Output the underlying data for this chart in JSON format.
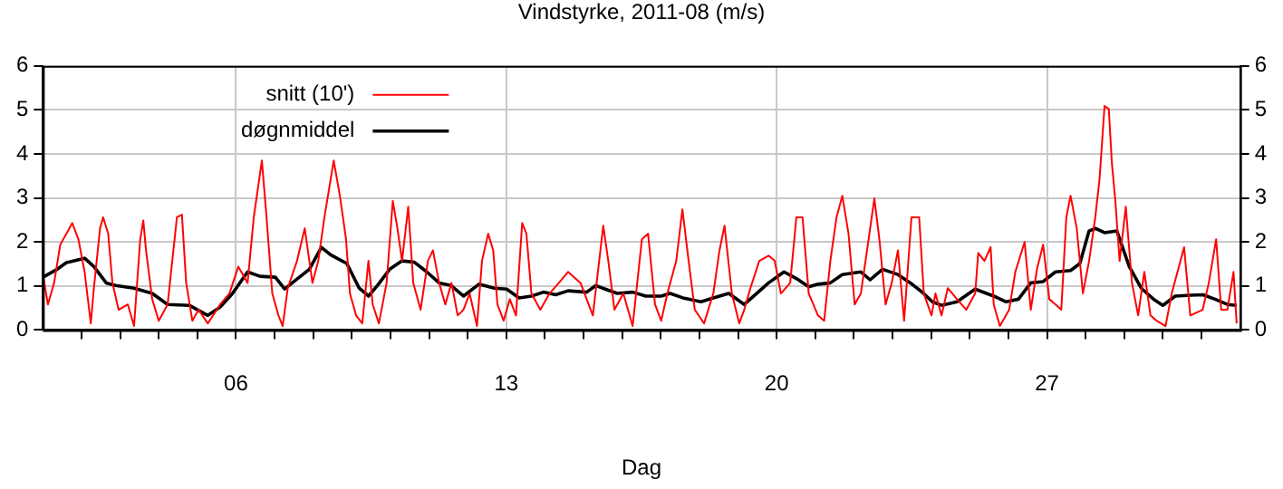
{
  "chart_data": {
    "type": "line",
    "title": "Vindstyrke, 2011-08 (m/s)",
    "xlabel": "Dag",
    "xlim": [
      1,
      32
    ],
    "xticks": [
      {
        "value": 2,
        "label": null
      },
      {
        "value": 3,
        "label": null
      },
      {
        "value": 4,
        "label": null
      },
      {
        "value": 5,
        "label": null
      },
      {
        "value": 6,
        "label": "06"
      },
      {
        "value": 7,
        "label": null
      },
      {
        "value": 8,
        "label": null
      },
      {
        "value": 9,
        "label": null
      },
      {
        "value": 10,
        "label": null
      },
      {
        "value": 11,
        "label": null
      },
      {
        "value": 12,
        "label": null
      },
      {
        "value": 13,
        "label": "13"
      },
      {
        "value": 14,
        "label": null
      },
      {
        "value": 15,
        "label": null
      },
      {
        "value": 16,
        "label": null
      },
      {
        "value": 17,
        "label": null
      },
      {
        "value": 18,
        "label": null
      },
      {
        "value": 19,
        "label": null
      },
      {
        "value": 20,
        "label": "20"
      },
      {
        "value": 21,
        "label": null
      },
      {
        "value": 22,
        "label": null
      },
      {
        "value": 23,
        "label": null
      },
      {
        "value": 24,
        "label": null
      },
      {
        "value": 25,
        "label": null
      },
      {
        "value": 26,
        "label": null
      },
      {
        "value": 27,
        "label": "27"
      },
      {
        "value": 28,
        "label": null
      },
      {
        "value": 29,
        "label": null
      },
      {
        "value": 30,
        "label": null
      },
      {
        "value": 31,
        "label": null
      }
    ],
    "ylim": [
      0,
      6
    ],
    "yticks": [
      0,
      1,
      2,
      3,
      4,
      5,
      6
    ],
    "y2lim": [
      0,
      6
    ],
    "y2ticks": [
      0,
      1,
      2,
      3,
      4,
      5,
      6
    ],
    "grid": true,
    "legend": "top left",
    "marker": "none",
    "line_style": "solid",
    "series": [
      {
        "name": "snitt (10')",
        "color": "#ff0000",
        "x": [
          1.0,
          1.13,
          1.29,
          1.45,
          1.61,
          1.76,
          1.92,
          2.08,
          2.24,
          2.32,
          2.48,
          2.56,
          2.69,
          2.8,
          2.96,
          3.2,
          3.36,
          3.52,
          3.6,
          3.67,
          3.83,
          4.0,
          4.23,
          4.47,
          4.6,
          4.71,
          4.87,
          5.03,
          5.27,
          5.59,
          5.83,
          6.06,
          6.3,
          6.46,
          6.67,
          6.78,
          6.94,
          7.1,
          7.21,
          7.34,
          7.58,
          7.78,
          7.98,
          8.13,
          8.29,
          8.53,
          8.69,
          8.85,
          8.95,
          9.11,
          9.27,
          9.43,
          9.54,
          9.7,
          9.9,
          10.06,
          10.18,
          10.3,
          10.46,
          10.59,
          10.78,
          10.97,
          11.1,
          11.26,
          11.42,
          11.58,
          11.74,
          11.89,
          12.05,
          12.24,
          12.37,
          12.53,
          12.66,
          12.77,
          12.93,
          13.09,
          13.25,
          13.41,
          13.52,
          13.65,
          13.88,
          14.12,
          14.36,
          14.6,
          14.92,
          15.24,
          15.51,
          15.64,
          15.8,
          16.03,
          16.27,
          16.51,
          16.67,
          16.85,
          17.01,
          17.17,
          17.4,
          17.56,
          17.72,
          17.88,
          18.12,
          18.36,
          18.52,
          18.65,
          18.84,
          19.03,
          19.16,
          19.32,
          19.55,
          19.79,
          19.95,
          20.11,
          20.35,
          20.51,
          20.67,
          20.83,
          21.07,
          21.23,
          21.39,
          21.55,
          21.7,
          21.86,
          22.02,
          22.18,
          22.34,
          22.53,
          22.66,
          22.82,
          22.98,
          23.14,
          23.3,
          23.49,
          23.69,
          23.81,
          24.01,
          24.11,
          24.27,
          24.43,
          24.67,
          24.91,
          25.14,
          25.22,
          25.38,
          25.54,
          25.62,
          25.78,
          26.02,
          26.18,
          26.42,
          26.58,
          26.74,
          26.9,
          27.06,
          27.22,
          27.37,
          27.5,
          27.61,
          27.77,
          27.93,
          28.09,
          28.25,
          28.36,
          28.49,
          28.6,
          28.68,
          28.77,
          28.88,
          29.04,
          29.2,
          29.36,
          29.52,
          29.68,
          29.84,
          30.07,
          30.23,
          30.55,
          30.71,
          31.03,
          31.19,
          31.38,
          31.51,
          31.67,
          31.83,
          31.91
        ],
        "values": [
          1.26,
          0.58,
          1.07,
          1.94,
          2.19,
          2.43,
          2.06,
          1.32,
          0.15,
          0.95,
          2.31,
          2.56,
          2.19,
          1.07,
          0.46,
          0.58,
          0.09,
          2.06,
          2.49,
          1.81,
          0.7,
          0.21,
          0.58,
          2.56,
          2.62,
          1.07,
          0.21,
          0.46,
          0.15,
          0.58,
          0.83,
          1.44,
          1.07,
          2.56,
          3.85,
          2.68,
          0.83,
          0.33,
          0.09,
          0.95,
          1.57,
          2.31,
          1.07,
          1.57,
          2.56,
          3.85,
          3.05,
          2.06,
          0.83,
          0.33,
          0.15,
          1.57,
          0.58,
          0.15,
          1.07,
          2.93,
          2.31,
          1.57,
          2.8,
          1.07,
          0.46,
          1.57,
          1.81,
          1.07,
          0.58,
          1.07,
          0.33,
          0.46,
          0.83,
          0.09,
          1.57,
          2.19,
          1.81,
          0.58,
          0.21,
          0.7,
          0.33,
          2.43,
          2.19,
          0.83,
          0.46,
          0.83,
          1.07,
          1.32,
          1.07,
          0.33,
          2.37,
          1.57,
          0.46,
          0.83,
          0.09,
          2.06,
          2.19,
          0.58,
          0.21,
          0.83,
          1.57,
          2.74,
          1.57,
          0.46,
          0.15,
          0.83,
          1.81,
          2.37,
          0.83,
          0.15,
          0.46,
          0.95,
          1.57,
          1.69,
          1.57,
          0.83,
          1.07,
          2.56,
          2.56,
          0.83,
          0.33,
          0.21,
          1.57,
          2.56,
          3.05,
          2.19,
          0.58,
          0.83,
          1.81,
          2.99,
          2.06,
          0.58,
          1.07,
          1.81,
          0.21,
          2.56,
          2.56,
          0.83,
          0.33,
          0.83,
          0.33,
          0.95,
          0.7,
          0.46,
          0.83,
          1.75,
          1.57,
          1.88,
          0.58,
          0.09,
          0.46,
          1.32,
          2.0,
          0.46,
          1.38,
          1.94,
          0.7,
          0.58,
          0.46,
          2.56,
          3.05,
          2.31,
          0.83,
          1.57,
          2.56,
          3.42,
          5.09,
          5.02,
          3.79,
          2.93,
          1.57,
          2.8,
          1.07,
          0.33,
          1.32,
          0.33,
          0.21,
          0.09,
          0.83,
          1.88,
          0.33,
          0.46,
          1.07,
          2.06,
          0.46,
          0.46,
          1.32,
          0.15
        ]
      },
      {
        "name": "døgnmiddel",
        "color": "#000000",
        "x": [
          1.0,
          1.37,
          1.61,
          2.08,
          2.32,
          2.64,
          2.88,
          3.36,
          3.83,
          4.23,
          4.79,
          5.27,
          5.59,
          5.91,
          6.3,
          6.62,
          7.02,
          7.26,
          7.5,
          7.9,
          8.21,
          8.45,
          8.87,
          9.19,
          9.43,
          9.66,
          9.98,
          10.3,
          10.62,
          10.94,
          11.26,
          11.57,
          11.89,
          12.29,
          12.69,
          13.01,
          13.33,
          13.65,
          13.96,
          14.28,
          14.6,
          15.08,
          15.32,
          15.56,
          15.87,
          16.27,
          16.61,
          17.01,
          17.24,
          17.57,
          18.04,
          18.36,
          18.76,
          19.16,
          19.48,
          19.79,
          20.19,
          20.51,
          20.83,
          21.07,
          21.39,
          21.7,
          22.18,
          22.42,
          22.74,
          23.14,
          23.46,
          23.78,
          24.03,
          24.27,
          24.67,
          25.14,
          25.62,
          25.94,
          26.26,
          26.58,
          26.9,
          27.22,
          27.61,
          27.85,
          28.09,
          28.25,
          28.49,
          28.81,
          29.13,
          29.44,
          29.76,
          30.0,
          30.32,
          30.72,
          31.04,
          31.35,
          31.67,
          31.91
        ],
        "values": [
          1.2,
          1.38,
          1.53,
          1.63,
          1.44,
          1.07,
          1.01,
          0.95,
          0.83,
          0.58,
          0.56,
          0.33,
          0.52,
          0.83,
          1.32,
          1.22,
          1.2,
          0.93,
          1.1,
          1.38,
          1.88,
          1.71,
          1.51,
          0.95,
          0.77,
          1.01,
          1.38,
          1.57,
          1.54,
          1.32,
          1.07,
          1.01,
          0.77,
          1.04,
          0.95,
          0.93,
          0.73,
          0.77,
          0.86,
          0.8,
          0.89,
          0.86,
          1.01,
          0.93,
          0.83,
          0.86,
          0.77,
          0.77,
          0.83,
          0.73,
          0.64,
          0.73,
          0.83,
          0.58,
          0.83,
          1.07,
          1.32,
          1.17,
          0.98,
          1.04,
          1.07,
          1.26,
          1.32,
          1.14,
          1.38,
          1.26,
          1.07,
          0.85,
          0.64,
          0.56,
          0.64,
          0.93,
          0.77,
          0.64,
          0.7,
          1.07,
          1.1,
          1.32,
          1.35,
          1.51,
          2.25,
          2.31,
          2.21,
          2.25,
          1.44,
          0.95,
          0.7,
          0.56,
          0.77,
          0.79,
          0.8,
          0.7,
          0.58,
          0.56
        ]
      }
    ]
  }
}
